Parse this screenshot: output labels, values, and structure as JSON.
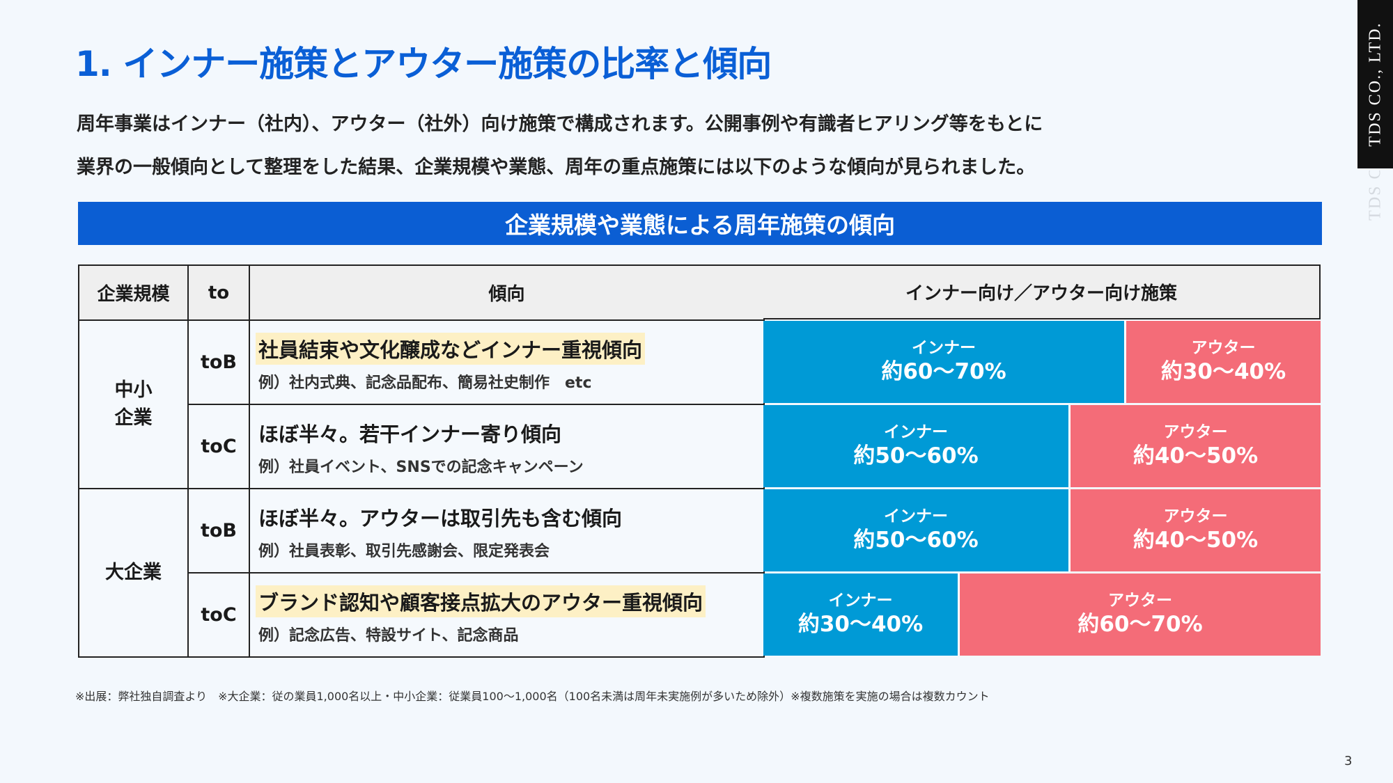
{
  "title": "1. インナー施策とアウター施策の比率と傾向",
  "intro": [
    "周年事業はインナー（社内）、アウター（社外）向け施策で構成されます。公開事例や有識者ヒアリング等をもとに",
    "業界の一般傾向として整理をした結果、企業規模や業態、周年の重点施策には以下のような傾向が見られました。"
  ],
  "brand": "TDS CO., LTD.",
  "brand_ghost": "TDS CO",
  "band_title": "企業規模や業態による周年施策の傾向",
  "headers": {
    "size": "企業規模",
    "to": "to",
    "trend": "傾向",
    "split": "インナー向け／アウター向け施策"
  },
  "groups": [
    {
      "label_line1": "中小",
      "label_line2": "企業"
    },
    {
      "label_line1": "大企業",
      "label_line2": ""
    }
  ],
  "rows": [
    {
      "to": "toB",
      "trend": "社員結束や文化醸成などインナー重視傾向",
      "example": "例）社内式典、記念品配布、簡易社史制作　etc",
      "inner_label": "インナー",
      "inner_pct": "約60〜70%",
      "outer_label": "アウター",
      "outer_pct": "約30〜40%",
      "inner_share": 0.65
    },
    {
      "to": "toC",
      "trend": "ほぼ半々。若干インナー寄り傾向",
      "example": "例）社員イベント、SNSでの記念キャンペーン",
      "inner_label": "インナー",
      "inner_pct": "約50〜60%",
      "outer_label": "アウター",
      "outer_pct": "約40〜50%",
      "inner_share": 0.55
    },
    {
      "to": "toB",
      "trend": "ほぼ半々。アウターは取引先も含む傾向",
      "example": "例）社員表彰、取引先感謝会、限定発表会",
      "inner_label": "インナー",
      "inner_pct": "約50〜60%",
      "outer_label": "アウター",
      "outer_pct": "約40〜50%",
      "inner_share": 0.55
    },
    {
      "to": "toC",
      "trend": "ブランド認知や顧客接点拡大のアウター重視傾向",
      "example": "例）記念広告、特設サイト、記念商品",
      "inner_label": "インナー",
      "inner_pct": "約30〜40%",
      "outer_label": "アウター",
      "outer_pct": "約60〜70%",
      "inner_share": 0.35
    }
  ],
  "colors": {
    "accent": "#0a5fd6",
    "band": "#0b5ed3",
    "inner": "#009ad6",
    "outer": "#f46c78",
    "highlight": "#fdf0c5"
  },
  "footnote": "※出展：弊社独自調査より　※大企業：従の業員1,000名以上・中小企業：従業員100〜1,000名（100名未満は周年未実施例が多いため除外）※複数施策を実施の場合は複数カウント",
  "page_number": "3"
}
